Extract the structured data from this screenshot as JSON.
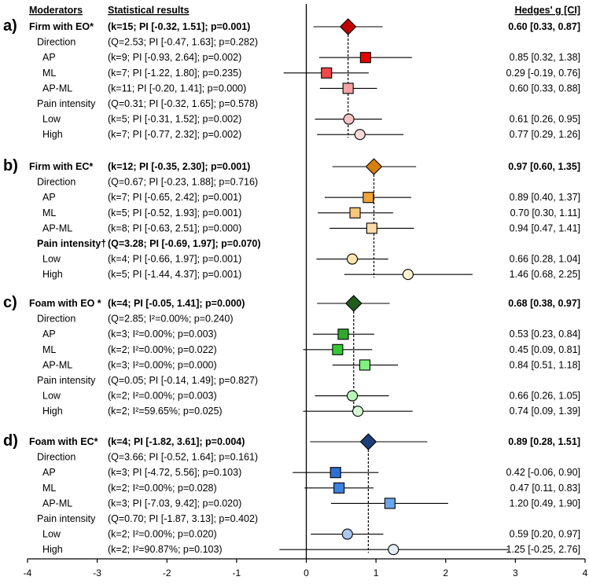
{
  "chart_data": {
    "type": "forest",
    "headers": {
      "moderators": "Moderators",
      "stats": "Statistical results",
      "effect": "Hedges' g [CI]"
    },
    "xlim": [
      -4,
      4
    ],
    "xticks": [
      "-4",
      "-3",
      "-2",
      "-1",
      "0",
      "1",
      "2",
      "3",
      "4"
    ],
    "panels": [
      {
        "letter": "a)",
        "name": "Firm with EO*",
        "stats": "(k=15; PI [-0.32, 1.51]; p=0.001)",
        "effect": "0.60 [0.33, 0.87]",
        "g": 0.6,
        "ci": [
          0.33,
          0.87
        ],
        "pi": [
          -0.32,
          1.51
        ],
        "fill": "#c00000",
        "rows": [
          {
            "label": "Direction",
            "stats": "(Q=2.53; PI [-0.47, 1.63]; p=0.282)",
            "header": true
          },
          {
            "label": "AP",
            "stats": "(k=9; PI [-0.93, 2.64]; p=0.002)",
            "effect": "0.85 [0.32, 1.38]",
            "g": 0.85,
            "ci": [
              0.32,
              1.38
            ],
            "shape": "square",
            "fill": "#e60000"
          },
          {
            "label": "ML",
            "stats": "(k=7; PI [-1.22, 1.80]; p=0.235)",
            "effect": "0.29 [-0.19, 0.76]",
            "g": 0.29,
            "ci": [
              -0.19,
              0.76
            ],
            "shape": "square",
            "fill": "#f04848"
          },
          {
            "label": "AP-ML",
            "stats": "(k=11; PI [-0.20, 1.41]; p=0.000)",
            "effect": "0.60 [0.33, 0.88]",
            "g": 0.6,
            "ci": [
              0.33,
              0.88
            ],
            "shape": "square",
            "fill": "#f5a3a3"
          },
          {
            "label": "Pain intensity",
            "stats": "(Q=0.31; PI [-0.32, 1.65]; p=0.578)",
            "header": true
          },
          {
            "label": "Low",
            "stats": "(k=5; PI [-0.31, 1.52]; p=0.002)",
            "effect": "0.61 [0.26, 0.95]",
            "g": 0.61,
            "ci": [
              0.26,
              0.95
            ],
            "shape": "circle",
            "fill": "#f8c2c2"
          },
          {
            "label": "High",
            "stats": "(k=7; PI [-0.77, 2.32]; p=0.002)",
            "effect": "0.77 [0.29, 1.26]",
            "g": 0.77,
            "ci": [
              0.29,
              1.26
            ],
            "shape": "circle",
            "fill": "#fbdada"
          }
        ]
      },
      {
        "letter": "b)",
        "name": "Firm with EC*",
        "stats": "(k=12; PI [-0.35, 2.30]; p=0.001)",
        "effect": "0.97 [0.60, 1.35]",
        "g": 0.97,
        "ci": [
          0.6,
          1.35
        ],
        "pi": [
          -0.35,
          2.3
        ],
        "fill": "#d67f0a",
        "rows": [
          {
            "label": "Direction",
            "stats": "(Q=0.67; PI [-0.23, 1.88]; p=0.716)",
            "header": true
          },
          {
            "label": "AP",
            "stats": "(k=7; PI [-0.65, 2.42]; p=0.001)",
            "effect": "0.89 [0.40, 1.37]",
            "g": 0.89,
            "ci": [
              0.4,
              1.37
            ],
            "shape": "square",
            "fill": "#f3a43a"
          },
          {
            "label": "ML",
            "stats": "(k=5; PI [-0.52, 1.93]; p=0.001)",
            "effect": "0.70 [0.30, 1.11]",
            "g": 0.7,
            "ci": [
              0.3,
              1.11
            ],
            "shape": "square",
            "fill": "#f8c678"
          },
          {
            "label": "AP-ML",
            "stats": "(k=8; PI [-0.63, 2.51]; p=0.000)",
            "effect": "0.94 [0.47, 1.41]",
            "g": 0.94,
            "ci": [
              0.47,
              1.41
            ],
            "shape": "square",
            "fill": "#fbdca8"
          },
          {
            "label": "Pain intensity†",
            "stats": "(Q=3.28; PI [-0.69, 1.97]; p=0.070)",
            "header": true,
            "bold": true
          },
          {
            "label": "Low",
            "stats": "(k=4; PI [-0.66, 1.97]; p=0.001)",
            "effect": "0.66 [0.28, 1.04]",
            "g": 0.66,
            "ci": [
              0.28,
              1.04
            ],
            "shape": "circle",
            "fill": "#fce6ad"
          },
          {
            "label": "High",
            "stats": "(k=5; PI [-1.44, 4.37]; p=0.001)",
            "effect": "1.46 [0.68, 2.25]",
            "g": 1.46,
            "ci": [
              0.68,
              2.25
            ],
            "shape": "circle",
            "fill": "#fdf1d2"
          }
        ]
      },
      {
        "letter": "c)",
        "name": "Foam with EO *",
        "stats": "(k=4; PI [-0.05, 1.41]; p=0.000)",
        "effect": "0.68 [0.38, 0.97]",
        "g": 0.68,
        "ci": [
          0.38,
          0.97
        ],
        "pi": [
          -0.05,
          1.41
        ],
        "fill": "#1e5c1e",
        "rows": [
          {
            "label": "Direction",
            "stats": "(Q=2.85; I²=0.00%; p=0.240)",
            "header": true
          },
          {
            "label": "AP",
            "stats": "(k=3; I²=0.00%; p=0.003)",
            "effect": "0.53 [0.23, 0.84]",
            "g": 0.53,
            "ci": [
              0.23,
              0.84
            ],
            "shape": "square",
            "fill": "#2eaa2e"
          },
          {
            "label": "ML",
            "stats": "(k=2; I²=0.00%; p=0.022)",
            "effect": "0.45 [0.09, 0.81]",
            "g": 0.45,
            "ci": [
              0.09,
              0.81
            ],
            "shape": "square",
            "fill": "#35c835"
          },
          {
            "label": "AP-ML",
            "stats": "(k=3; I²=0.00%; p=0.000)",
            "effect": "0.84 [0.51, 1.18]",
            "g": 0.84,
            "ci": [
              0.51,
              1.18
            ],
            "shape": "square",
            "fill": "#80f080"
          },
          {
            "label": "Pain intensity",
            "stats": "(Q=0.05; PI [-0.14, 1.49]; p=0.827)",
            "header": true
          },
          {
            "label": "Low",
            "stats": "(k=2; I²=0.00%; p=0.003)",
            "effect": "0.66 [0.26, 1.05]",
            "g": 0.66,
            "ci": [
              0.26,
              1.05
            ],
            "shape": "circle",
            "fill": "#b8f5b8"
          },
          {
            "label": "High",
            "stats": "(k=2; I²=59.65%; p=0.025)",
            "effect": "0.74 [0.09, 1.39]",
            "g": 0.74,
            "ci": [
              0.09,
              1.39
            ],
            "shape": "circle",
            "fill": "#d6f9d6"
          }
        ]
      },
      {
        "letter": "d)",
        "name": "Foam with EC*",
        "stats": "(k=4; PI [-1.82, 3.61]; p=0.004)",
        "effect": "0.89 [0.28, 1.51]",
        "g": 0.89,
        "ci": [
          0.28,
          1.51
        ],
        "pi": [
          -1.82,
          3.61
        ],
        "fill": "#1f3d7a",
        "rows": [
          {
            "label": "Direction",
            "stats": "(Q=3.66; PI [-0.52, 1.64]; p=0.161)",
            "header": true
          },
          {
            "label": "AP",
            "stats": "(k=3; PI [-4.72, 5.56]; p=0.103)",
            "effect": "0.42 [-0.06, 0.90]",
            "g": 0.42,
            "ci": [
              -0.06,
              0.9
            ],
            "shape": "square",
            "fill": "#2e6fd1"
          },
          {
            "label": "ML",
            "stats": "(k=2; I²=0.00%; p=0.028)",
            "effect": "0.47 [0.11, 0.83]",
            "g": 0.47,
            "ci": [
              0.11,
              0.83
            ],
            "shape": "square",
            "fill": "#3c82e0"
          },
          {
            "label": "AP-ML",
            "stats": "(k=3; PI [-7.03, 9.42]; p=0.020)",
            "effect": "1.20 [0.49, 1.90]",
            "g": 1.2,
            "ci": [
              0.49,
              1.9
            ],
            "shape": "square",
            "fill": "#6aa6ea"
          },
          {
            "label": "Pain intensity",
            "stats": "(Q=0.70; PI [-1.87, 3.13]; p=0.402)",
            "header": true
          },
          {
            "label": "Low",
            "stats": "(k=2; I²=0.00%; p=0.020)",
            "effect": "0.59 [0.20, 0.97]",
            "g": 0.59,
            "ci": [
              0.2,
              0.97
            ],
            "shape": "circle",
            "fill": "#a9c8f2"
          },
          {
            "label": "High",
            "stats": "(k=2; I²=90.87%; p=0.103)",
            "effect": "1.25 [-0.25, 2.76]",
            "g": 1.25,
            "ci": [
              -0.25,
              2.76
            ],
            "shape": "circle",
            "fill": "#e4eefb"
          }
        ]
      }
    ]
  }
}
